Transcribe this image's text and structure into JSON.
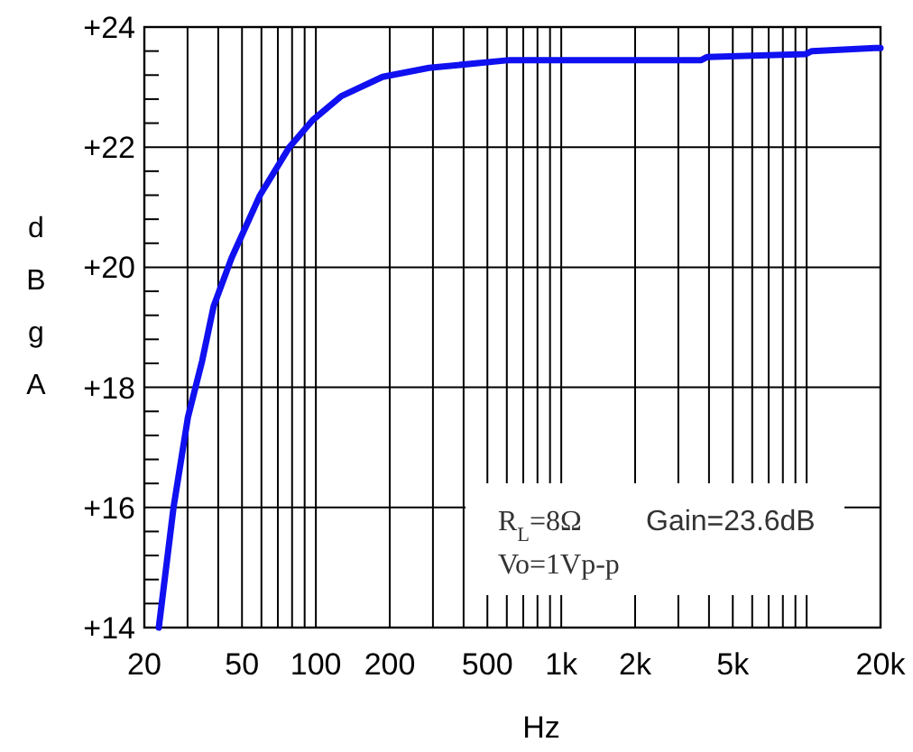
{
  "chart_data": {
    "type": "line",
    "xlabel": "Hz",
    "ylabel": "dBgA",
    "log": "x",
    "grid": true,
    "marker": "none",
    "line_style": "solid",
    "x": [
      22.9,
      26.3,
      30.1,
      34.4,
      38.3,
      45.3,
      59.2,
      78,
      97,
      127,
      187,
      289,
      616,
      3720,
      3920,
      9900,
      10500,
      19000,
      20000
    ],
    "series": [
      {
        "color": "#1010f0",
        "values": [
          14,
          16,
          17.5,
          18.44,
          19.35,
          20.15,
          21.2,
          22,
          22.45,
          22.85,
          23.17,
          23.32,
          23.45,
          23.45,
          23.5,
          23.55,
          23.6,
          23.65,
          23.65
        ]
      }
    ],
    "xlim": [
      20,
      20000
    ],
    "ylim": [
      14,
      24
    ],
    "xticks": [
      20,
      {
        "value": 30,
        "label": null
      },
      {
        "value": 40,
        "label": null
      },
      50,
      {
        "value": 60,
        "label": null
      },
      {
        "value": 70,
        "label": null
      },
      {
        "value": 80,
        "label": null
      },
      {
        "value": 90,
        "label": null
      },
      100,
      200,
      {
        "value": 300,
        "label": null
      },
      {
        "value": 400,
        "label": null
      },
      500,
      {
        "value": 600,
        "label": null
      },
      {
        "value": 700,
        "label": null
      },
      {
        "value": 800,
        "label": null
      },
      {
        "value": 900,
        "label": null
      },
      {
        "value": 1000,
        "label": "1k"
      },
      {
        "value": 2000,
        "label": "2k"
      },
      {
        "value": 3000,
        "label": null
      },
      {
        "value": 4000,
        "label": null
      },
      {
        "value": 5000,
        "label": "5k"
      },
      {
        "value": 6000,
        "label": null
      },
      {
        "value": 7000,
        "label": null
      },
      {
        "value": 8000,
        "label": null
      },
      {
        "value": 9000,
        "label": null
      },
      {
        "value": 10000,
        "label": null
      },
      {
        "value": 20000,
        "label": "20k"
      }
    ],
    "yticks": [
      {
        "value": 14,
        "label": "+14"
      },
      {
        "value": 14.4,
        "label": null
      },
      {
        "value": 14.8,
        "label": null
      },
      {
        "value": 15.2,
        "label": null
      },
      {
        "value": 15.6,
        "label": null
      },
      {
        "value": 16,
        "label": "+16"
      },
      {
        "value": 16.4,
        "label": null
      },
      {
        "value": 16.8,
        "label": null
      },
      {
        "value": 17.2,
        "label": null
      },
      {
        "value": 17.6,
        "label": null
      },
      {
        "value": 18,
        "label": "+18"
      },
      {
        "value": 18.4,
        "label": null
      },
      {
        "value": 18.8,
        "label": null
      },
      {
        "value": 19.2,
        "label": null
      },
      {
        "value": 19.6,
        "label": null
      },
      {
        "value": 20,
        "label": "+20"
      },
      {
        "value": 20.4,
        "label": null
      },
      {
        "value": 20.8,
        "label": null
      },
      {
        "value": 21.2,
        "label": null
      },
      {
        "value": 21.6,
        "label": null
      },
      {
        "value": 22,
        "label": "+22"
      },
      {
        "value": 22.4,
        "label": null
      },
      {
        "value": 22.8,
        "label": null
      },
      {
        "value": 23.2,
        "label": null
      },
      {
        "value": 23.6,
        "label": null
      },
      {
        "value": 24,
        "label": "+24"
      }
    ],
    "annotations": [
      "R$_{L}$=8Ω",
      "Gain=23.6dB",
      "Vo=1Vp-p"
    ]
  }
}
